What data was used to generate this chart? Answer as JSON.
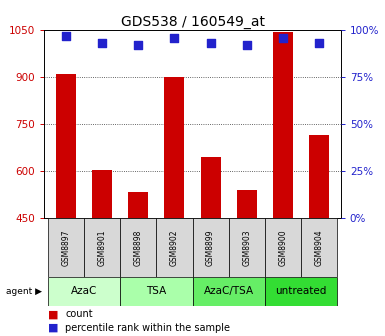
{
  "title": "GDS538 / 160549_at",
  "samples": [
    "GSM8897",
    "GSM8901",
    "GSM8898",
    "GSM8902",
    "GSM8899",
    "GSM8903",
    "GSM8900",
    "GSM8904"
  ],
  "counts": [
    910,
    605,
    535,
    900,
    645,
    540,
    1045,
    715
  ],
  "percentiles": [
    97,
    93,
    92,
    96,
    93,
    92,
    96,
    93
  ],
  "agent_group_defs": [
    {
      "label": "AzaC",
      "start": 0,
      "end": 2,
      "color": "#ccffcc"
    },
    {
      "label": "TSA",
      "start": 2,
      "end": 4,
      "color": "#aaffaa"
    },
    {
      "label": "AzaC/TSA",
      "start": 4,
      "end": 6,
      "color": "#66ee66"
    },
    {
      "label": "untreated",
      "start": 6,
      "end": 8,
      "color": "#33dd33"
    }
  ],
  "ylim_left": [
    450,
    1050
  ],
  "ylim_right": [
    0,
    100
  ],
  "yticks_left": [
    450,
    600,
    750,
    900,
    1050
  ],
  "yticks_right": [
    0,
    25,
    50,
    75,
    100
  ],
  "bar_color": "#cc0000",
  "dot_color": "#2222cc",
  "bar_width": 0.55,
  "dot_size": 30,
  "background_color": "#ffffff",
  "grid_color": "#333333",
  "tick_color_left": "#cc0000",
  "tick_color_right": "#2222cc",
  "sample_cell_color": "#d8d8d8",
  "title_fontsize": 10,
  "tick_fontsize": 7.5,
  "sample_fontsize": 5.5,
  "agent_fontsize": 7.5,
  "legend_fontsize": 7
}
